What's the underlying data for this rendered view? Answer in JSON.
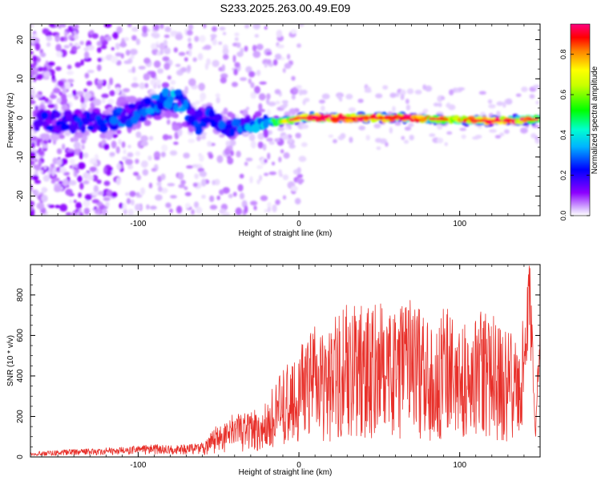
{
  "title": "S233.2025.263.00.49.E09",
  "chart_data": [
    {
      "type": "heatmap",
      "title": "S233.2025.263.00.49.E09",
      "xlabel": "Height of straight line (km)",
      "ylabel": "Frequency (Hz)",
      "xlim": [
        -167,
        150
      ],
      "ylim": [
        -25,
        24
      ],
      "xticks": [
        -100,
        0,
        100
      ],
      "yticks": [
        -20,
        -10,
        0,
        10,
        20
      ],
      "colorbar": {
        "label": "Normalized spectral amplitude",
        "range": [
          0,
          0.95
        ],
        "ticks": [
          "0.0",
          "0.2",
          "0.4",
          "0.6",
          "0.8"
        ],
        "tick_values": [
          0.0,
          0.2,
          0.4,
          0.6,
          0.8
        ],
        "colormap": [
          "#ffffff",
          "#e6ccff",
          "#8800ff",
          "#0000ff",
          "#00ffff",
          "#00ff00",
          "#ffff00",
          "#ff8800",
          "#ff0000",
          "#ff0088"
        ]
      },
      "ridge": [
        {
          "x": -160,
          "f": -1,
          "a": 0.2
        },
        {
          "x": -140,
          "f": -1,
          "a": 0.22
        },
        {
          "x": -120,
          "f": -0.5,
          "a": 0.25
        },
        {
          "x": -100,
          "f": 1,
          "a": 0.28
        },
        {
          "x": -90,
          "f": 3,
          "a": 0.3
        },
        {
          "x": -80,
          "f": 5,
          "a": 0.32
        },
        {
          "x": -72,
          "f": 4,
          "a": 0.3
        },
        {
          "x": -65,
          "f": -2,
          "a": 0.25
        },
        {
          "x": -55,
          "f": 1,
          "a": 0.25
        },
        {
          "x": -45,
          "f": -3,
          "a": 0.25
        },
        {
          "x": -35,
          "f": -2,
          "a": 0.28
        },
        {
          "x": -25,
          "f": -1.5,
          "a": 0.35
        },
        {
          "x": -15,
          "f": -1,
          "a": 0.5
        },
        {
          "x": -5,
          "f": -0.5,
          "a": 0.7
        },
        {
          "x": 0,
          "f": 0,
          "a": 0.8
        },
        {
          "x": 20,
          "f": 0,
          "a": 0.9
        },
        {
          "x": 40,
          "f": 0,
          "a": 0.95
        },
        {
          "x": 60,
          "f": 0,
          "a": 0.9
        },
        {
          "x": 80,
          "f": -0.2,
          "a": 0.75
        },
        {
          "x": 100,
          "f": -0.5,
          "a": 0.7
        },
        {
          "x": 120,
          "f": -0.8,
          "a": 0.9
        },
        {
          "x": 140,
          "f": -0.5,
          "a": 0.8
        },
        {
          "x": 150,
          "f": -0.3,
          "a": 0.6
        }
      ]
    },
    {
      "type": "line",
      "xlabel": "Height of straight line (km)",
      "ylabel": "SNR (10 * v/v)",
      "xlim": [
        -167,
        150
      ],
      "ylim": [
        0,
        950
      ],
      "xticks": [
        -100,
        0,
        100
      ],
      "yticks": [
        0,
        200,
        400,
        600,
        800
      ],
      "series": [
        {
          "name": "SNR",
          "color": "#e8302a",
          "x": [
            -165,
            -150,
            -130,
            -110,
            -100,
            -90,
            -80,
            -70,
            -60,
            -55,
            -50,
            -45,
            -40,
            -35,
            -30,
            -25,
            -20,
            -15,
            -10,
            -5,
            0,
            5,
            10,
            15,
            20,
            25,
            30,
            35,
            40,
            45,
            50,
            55,
            60,
            65,
            70,
            75,
            80,
            85,
            90,
            95,
            100,
            105,
            110,
            115,
            120,
            125,
            130,
            135,
            140,
            143,
            145,
            147,
            150
          ],
          "y": [
            20,
            25,
            30,
            35,
            40,
            45,
            40,
            45,
            50,
            90,
            130,
            150,
            170,
            160,
            180,
            190,
            220,
            280,
            330,
            380,
            420,
            460,
            500,
            480,
            520,
            560,
            600,
            580,
            620,
            560,
            600,
            560,
            540,
            580,
            600,
            560,
            520,
            540,
            600,
            560,
            520,
            500,
            540,
            560,
            560,
            520,
            480,
            500,
            520,
            940,
            700,
            100,
            750
          ]
        }
      ]
    }
  ]
}
